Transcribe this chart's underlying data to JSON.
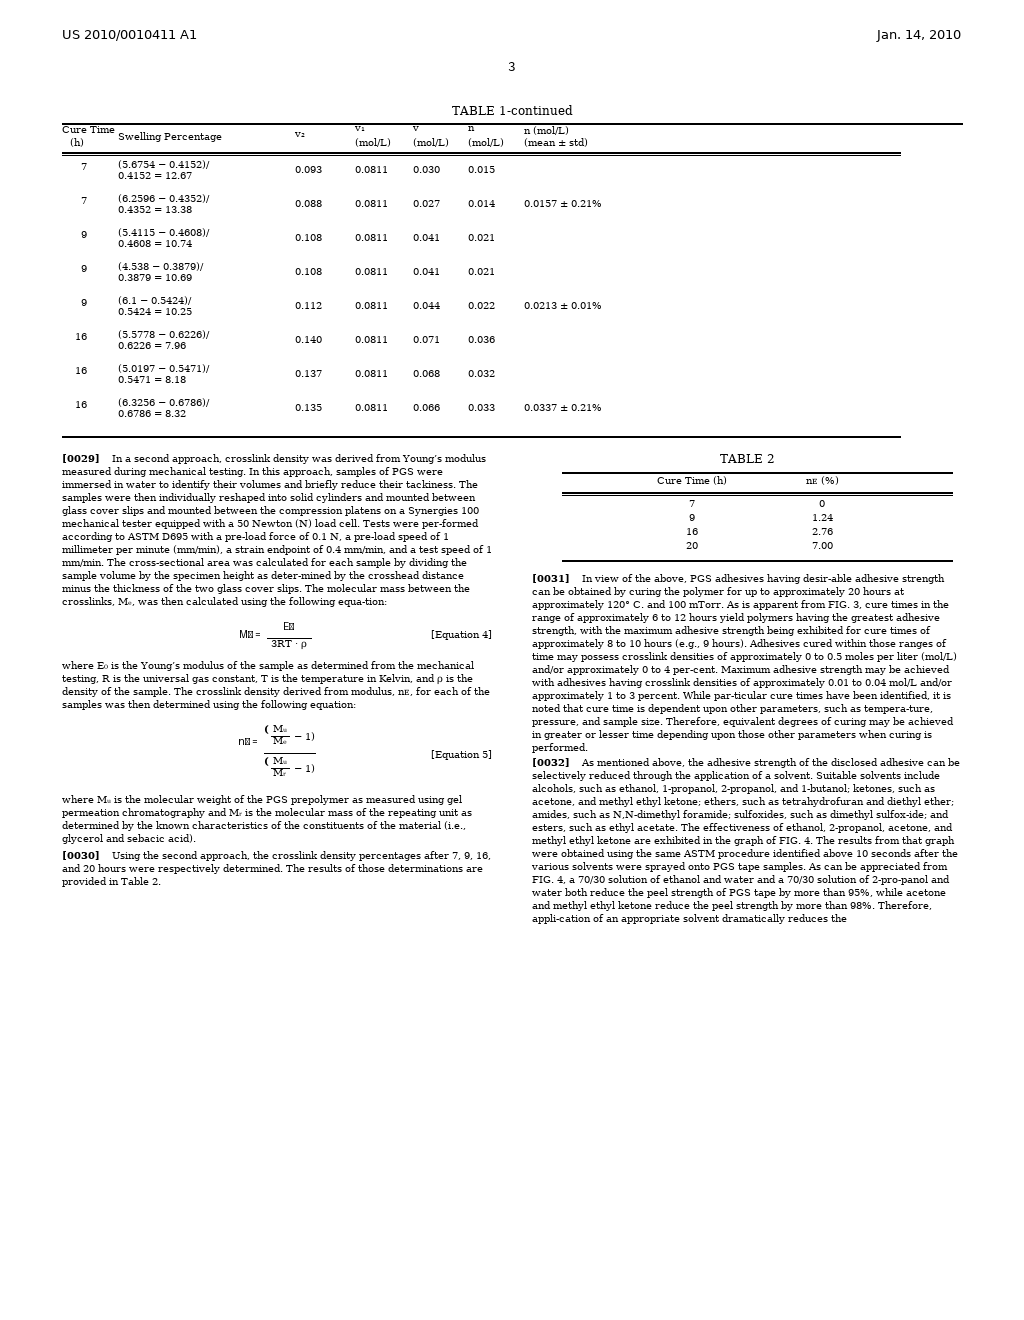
{
  "background_color": "#ffffff",
  "page_width": 10.24,
  "page_height": 13.2,
  "dpi": 100,
  "header_left": "US 2010/0010411 A1",
  "header_right": "Jan. 14, 2010",
  "page_number": "3",
  "table1_title": "TABLE 1-continued",
  "table1_col_headers_line1": [
    "Cure Time",
    "",
    "",
    "v₁",
    "v",
    "n",
    "n (mol/L)"
  ],
  "table1_col_headers_line2": [
    "(h)",
    "Swelling Percentage",
    "v₂",
    "(mol/L)",
    "(mol/L)",
    "(mol/L)",
    "(mean ± std)"
  ],
  "table1_rows": [
    [
      "7",
      "(5.6754 − 0.4152)/\n0.4152 = 12.67",
      "0.093",
      "0.0811",
      "0.030",
      "0.015",
      ""
    ],
    [
      "7",
      "(6.2596 − 0.4352)/\n0.4352 = 13.38",
      "0.088",
      "0.0811",
      "0.027",
      "0.014",
      "0.0157 ± 0.21%"
    ],
    [
      "9",
      "(5.4115 − 0.4608)/\n0.4608 = 10.74",
      "0.108",
      "0.0811",
      "0.041",
      "0.021",
      ""
    ],
    [
      "9",
      "(4.538 − 0.3879)/\n0.3879 = 10.69",
      "0.108",
      "0.0811",
      "0.041",
      "0.021",
      ""
    ],
    [
      "9",
      "(6.1 − 0.5424)/\n0.5424 = 10.25",
      "0.112",
      "0.0811",
      "0.044",
      "0.022",
      "0.0213 ± 0.01%"
    ],
    [
      "16",
      "(5.5778 − 0.6226)/\n0.6226 = 7.96",
      "0.140",
      "0.0811",
      "0.071",
      "0.036",
      ""
    ],
    [
      "16",
      "(5.0197 − 0.5471)/\n0.5471 = 8.18",
      "0.137",
      "0.0811",
      "0.068",
      "0.032",
      ""
    ],
    [
      "16",
      "(6.3256 − 0.6786)/\n0.6786 = 8.32",
      "0.135",
      "0.0811",
      "0.066",
      "0.033",
      "0.0337 ± 0.21%"
    ]
  ],
  "left_col_paragraphs": [
    {
      "tag": "[0029]",
      "text": "In a second approach, crosslink density was derived from Young’s modulus measured during mechanical testing. In this approach, samples of PGS were immersed in water to identify their volumes and briefly reduce their tackiness. The samples were then individually reshaped into solid cylinders and mounted between glass cover slips and mounted between the compression platens on a Synergies 100 mechanical tester equipped with a 50 Newton (N) load cell. Tests were per-formed according to ASTM D695 with a pre-load force of 0.1 N, a pre-load speed of 1 millimeter per minute (mm/min), a strain endpoint of 0.4 mm/min, and a test speed of 1 mm/min. The cross-sectional area was calculated for each sample by dividing the sample volume by the specimen height as deter-mined by the crosshead distance minus the thickness of the two glass cover slips. The molecular mass between the crosslinks, Mₑ, was then calculated using the following equa-tion:"
    }
  ],
  "eq4_label": "[Equation 4]",
  "where_text1": "where E₀ is the Young’s modulus of the sample as determined from the mechanical testing, R is the universal gas constant, T is the temperature in Kelvin, and ρ is the density of the sample. The crosslink density derived from modulus, nᴇ, for each of the samples was then determined using the following equation:",
  "eq5_label": "[Equation 5]",
  "where_text2": "where Mᵤ is the molecular weight of the PGS prepolymer as measured using gel permeation chromatography and Mᵣ is the molecular mass of the repeating unit as determined by the known characteristics of the constituents of the material (i.e., glycerol and sebacic acid).",
  "para_0030": {
    "tag": "[0030]",
    "text": "Using the second approach, the crosslink density percentages after 7, 9, 16, and 20 hours were respectively determined. The results of those determinations are provided in Table 2."
  },
  "table2_title": "TABLE 2",
  "table2_col_headers": [
    "Cure Time (h)",
    "nᴇ (%)"
  ],
  "table2_rows": [
    [
      "7",
      "0"
    ],
    [
      "9",
      "1.24"
    ],
    [
      "16",
      "2.76"
    ],
    [
      "20",
      "7.00"
    ]
  ],
  "para_0031": {
    "tag": "[0031]",
    "text": "In view of the above, PGS adhesives having desir-able adhesive strength can be obtained by curing the polymer for up to approximately 20 hours at approximately 120° C. and 100 mTorr. As is apparent from FIG. 3, cure times in the range of approximately 6 to 12 hours yield polymers having the greatest adhesive strength, with the maximum adhesive strength being exhibited for cure times of approximately 8 to 10 hours (e.g., 9 hours). Adhesives cured within those ranges of time may possess crosslink densities of approximately 0 to 0.5 moles per liter (mol/L) and/or approximately 0 to 4 per-cent. Maximum adhesive strength may be achieved with adhesives having crosslink densities of approximately 0.01 to 0.04 mol/L and/or approximately 1 to 3 percent. While par-ticular cure times have been identified, it is noted that cure time is dependent upon other parameters, such as tempera-ture, pressure, and sample size. Therefore, equivalent degrees of curing may be achieved in greater or lesser time depending upon those other parameters when curing is performed."
  },
  "para_0032": {
    "tag": "[0032]",
    "text": "As mentioned above, the adhesive strength of the disclosed adhesive can be selectively reduced through the application of a solvent. Suitable solvents include alcohols, such as ethanol, 1-propanol, 2-propanol, and 1-butanol; ketones, such as acetone, and methyl ethyl ketone; ethers, such as tetrahydrofuran and diethyl ether; amides, such as N,N-dimethyl foramide; sulfoxides, such as dimethyl sulfox-ide; and esters, such as ethyl acetate. The effectiveness of ethanol, 2-propanol, acetone, and methyl ethyl ketone are exhibited in the graph of FIG. 4. The results from that graph were obtained using the same ASTM procedure identified above 10 seconds after the various solvents were sprayed onto PGS tape samples. As can be appreciated from FIG. 4, a 70/30 solution of ethanol and water and a 70/30 solution of 2-pro-panol and water both reduce the peel strength of PGS tape by more than 95%, while acetone and methyl ethyl ketone reduce the peel strength by more than 98%. Therefore, appli-cation of an appropriate solvent dramatically reduces the"
  }
}
